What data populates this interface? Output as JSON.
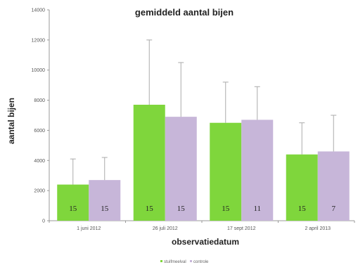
{
  "chart_data": {
    "type": "bar",
    "title": "gemiddeld aantal bijen",
    "xlabel": "observatiedatum",
    "ylabel": "aantal bijen",
    "ylim": [
      0,
      14000
    ],
    "yticks": [
      0,
      2000,
      4000,
      6000,
      8000,
      10000,
      12000,
      14000
    ],
    "categories": [
      "1 juni 2012",
      "26 juli 2012",
      "17 sept 2012",
      "2 april 2013"
    ],
    "series": [
      {
        "name": "stuifmeelval",
        "color": "#7fd63c",
        "values": [
          2400,
          7700,
          6500,
          4400
        ],
        "error": [
          1700,
          4300,
          2700,
          2100
        ],
        "labels": [
          "15",
          "15",
          "15",
          "15"
        ]
      },
      {
        "name": "controle",
        "color": "#c7b6d9",
        "values": [
          2700,
          6900,
          6700,
          4600
        ],
        "error": [
          1500,
          3600,
          2200,
          2400
        ],
        "labels": [
          "15",
          "15",
          "11",
          "7"
        ]
      }
    ],
    "grid": false,
    "legend": "bottom"
  }
}
